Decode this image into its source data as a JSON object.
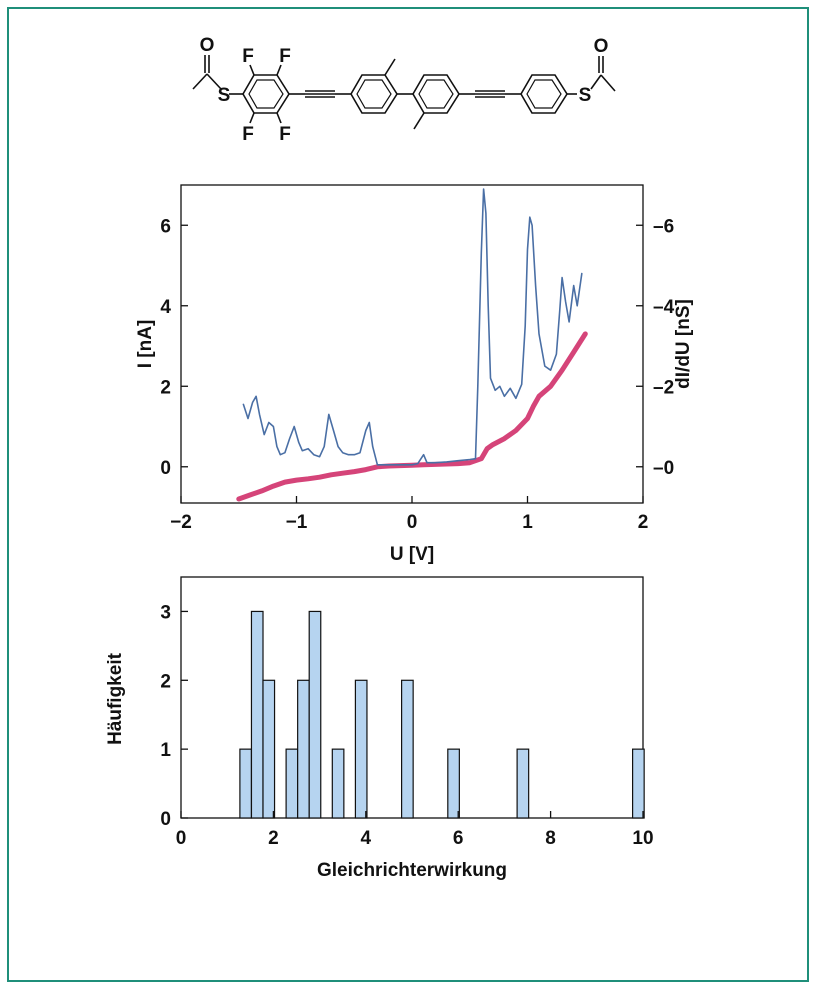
{
  "molecule": {
    "atoms": {
      "o_left": "O",
      "s_left": "S",
      "f_top_left": "F",
      "f_top_right": "F",
      "f_bottom_left": "F",
      "f_bottom_right": "F",
      "s_right": "S",
      "o_right": "O"
    }
  },
  "chart_data": [
    {
      "type": "line",
      "xlabel": "U [V]",
      "ylabel": "I [nA]",
      "y2label": "dI/dU [nS]",
      "xlim": [
        -2,
        2
      ],
      "ylim": [
        -0.9,
        7.0
      ],
      "y2lim": [
        -0.9,
        7.0
      ],
      "x_ticks": [
        -2,
        -1,
        0,
        1,
        2
      ],
      "y_ticks": [
        0,
        2,
        4,
        6
      ],
      "y2_ticks": [
        0,
        2,
        4,
        6
      ],
      "grid": false,
      "series": [
        {
          "axis": "left",
          "color": "#d0306a",
          "points": [
            [
              -1.5,
              -0.8
            ],
            [
              -1.4,
              -0.7
            ],
            [
              -1.3,
              -0.6
            ],
            [
              -1.2,
              -0.48
            ],
            [
              -1.1,
              -0.38
            ],
            [
              -1.0,
              -0.33
            ],
            [
              -0.9,
              -0.3
            ],
            [
              -0.8,
              -0.26
            ],
            [
              -0.7,
              -0.2
            ],
            [
              -0.6,
              -0.16
            ],
            [
              -0.5,
              -0.12
            ],
            [
              -0.4,
              -0.07
            ],
            [
              -0.3,
              0.0
            ],
            [
              -0.2,
              0.02
            ],
            [
              -0.1,
              0.03
            ],
            [
              0.0,
              0.04
            ],
            [
              0.1,
              0.05
            ],
            [
              0.2,
              0.06
            ],
            [
              0.3,
              0.07
            ],
            [
              0.4,
              0.08
            ],
            [
              0.5,
              0.1
            ],
            [
              0.6,
              0.2
            ],
            [
              0.65,
              0.45
            ],
            [
              0.7,
              0.55
            ],
            [
              0.8,
              0.7
            ],
            [
              0.9,
              0.9
            ],
            [
              1.0,
              1.2
            ],
            [
              1.05,
              1.5
            ],
            [
              1.1,
              1.75
            ],
            [
              1.2,
              2.0
            ],
            [
              1.3,
              2.4
            ],
            [
              1.4,
              2.85
            ],
            [
              1.5,
              3.3
            ]
          ]
        },
        {
          "axis": "right",
          "color": "#4a6fa5",
          "points": [
            [
              -1.46,
              1.55
            ],
            [
              -1.42,
              1.2
            ],
            [
              -1.38,
              1.6
            ],
            [
              -1.35,
              1.75
            ],
            [
              -1.32,
              1.3
            ],
            [
              -1.28,
              0.8
            ],
            [
              -1.24,
              1.1
            ],
            [
              -1.2,
              1.0
            ],
            [
              -1.17,
              0.5
            ],
            [
              -1.14,
              0.3
            ],
            [
              -1.1,
              0.35
            ],
            [
              -1.06,
              0.7
            ],
            [
              -1.02,
              1.0
            ],
            [
              -0.98,
              0.6
            ],
            [
              -0.95,
              0.4
            ],
            [
              -0.9,
              0.45
            ],
            [
              -0.85,
              0.3
            ],
            [
              -0.8,
              0.25
            ],
            [
              -0.76,
              0.5
            ],
            [
              -0.72,
              1.3
            ],
            [
              -0.68,
              0.9
            ],
            [
              -0.64,
              0.5
            ],
            [
              -0.6,
              0.35
            ],
            [
              -0.55,
              0.3
            ],
            [
              -0.5,
              0.3
            ],
            [
              -0.45,
              0.35
            ],
            [
              -0.4,
              0.9
            ],
            [
              -0.37,
              1.1
            ],
            [
              -0.34,
              0.5
            ],
            [
              -0.3,
              0.05
            ],
            [
              -0.2,
              0.05
            ],
            [
              -0.1,
              0.05
            ],
            [
              0.0,
              0.05
            ],
            [
              0.05,
              0.08
            ],
            [
              0.1,
              0.3
            ],
            [
              0.13,
              0.1
            ],
            [
              0.2,
              0.1
            ],
            [
              0.3,
              0.12
            ],
            [
              0.4,
              0.15
            ],
            [
              0.5,
              0.18
            ],
            [
              0.55,
              0.2
            ],
            [
              0.57,
              2.0
            ],
            [
              0.6,
              5.3
            ],
            [
              0.62,
              6.9
            ],
            [
              0.64,
              6.3
            ],
            [
              0.66,
              4.0
            ],
            [
              0.68,
              2.2
            ],
            [
              0.72,
              1.9
            ],
            [
              0.76,
              2.0
            ],
            [
              0.8,
              1.75
            ],
            [
              0.85,
              1.95
            ],
            [
              0.9,
              1.7
            ],
            [
              0.95,
              2.05
            ],
            [
              0.98,
              3.5
            ],
            [
              1.0,
              5.4
            ],
            [
              1.02,
              6.2
            ],
            [
              1.04,
              6.0
            ],
            [
              1.07,
              4.5
            ],
            [
              1.1,
              3.3
            ],
            [
              1.15,
              2.5
            ],
            [
              1.2,
              2.4
            ],
            [
              1.25,
              2.8
            ],
            [
              1.28,
              3.9
            ],
            [
              1.3,
              4.7
            ],
            [
              1.33,
              4.1
            ],
            [
              1.36,
              3.6
            ],
            [
              1.4,
              4.5
            ],
            [
              1.43,
              4.0
            ],
            [
              1.47,
              4.8
            ]
          ]
        }
      ]
    },
    {
      "type": "bar",
      "xlabel": "Gleichrichterwirkung",
      "ylabel": "Häufigkeit",
      "xlim": [
        0,
        10
      ],
      "ylim": [
        0,
        3.5
      ],
      "x_ticks": [
        0,
        2,
        4,
        6,
        8,
        10
      ],
      "y_ticks": [
        0,
        1,
        2,
        3
      ],
      "bar_width": 0.25,
      "bar_color": "#b6d4f0",
      "x": [
        1.4,
        1.65,
        1.9,
        2.4,
        2.65,
        2.9,
        3.4,
        3.9,
        4.9,
        5.9,
        7.4,
        9.9
      ],
      "values": [
        1,
        3,
        2,
        1,
        2,
        3,
        1,
        2,
        2,
        1,
        1,
        1
      ]
    }
  ]
}
